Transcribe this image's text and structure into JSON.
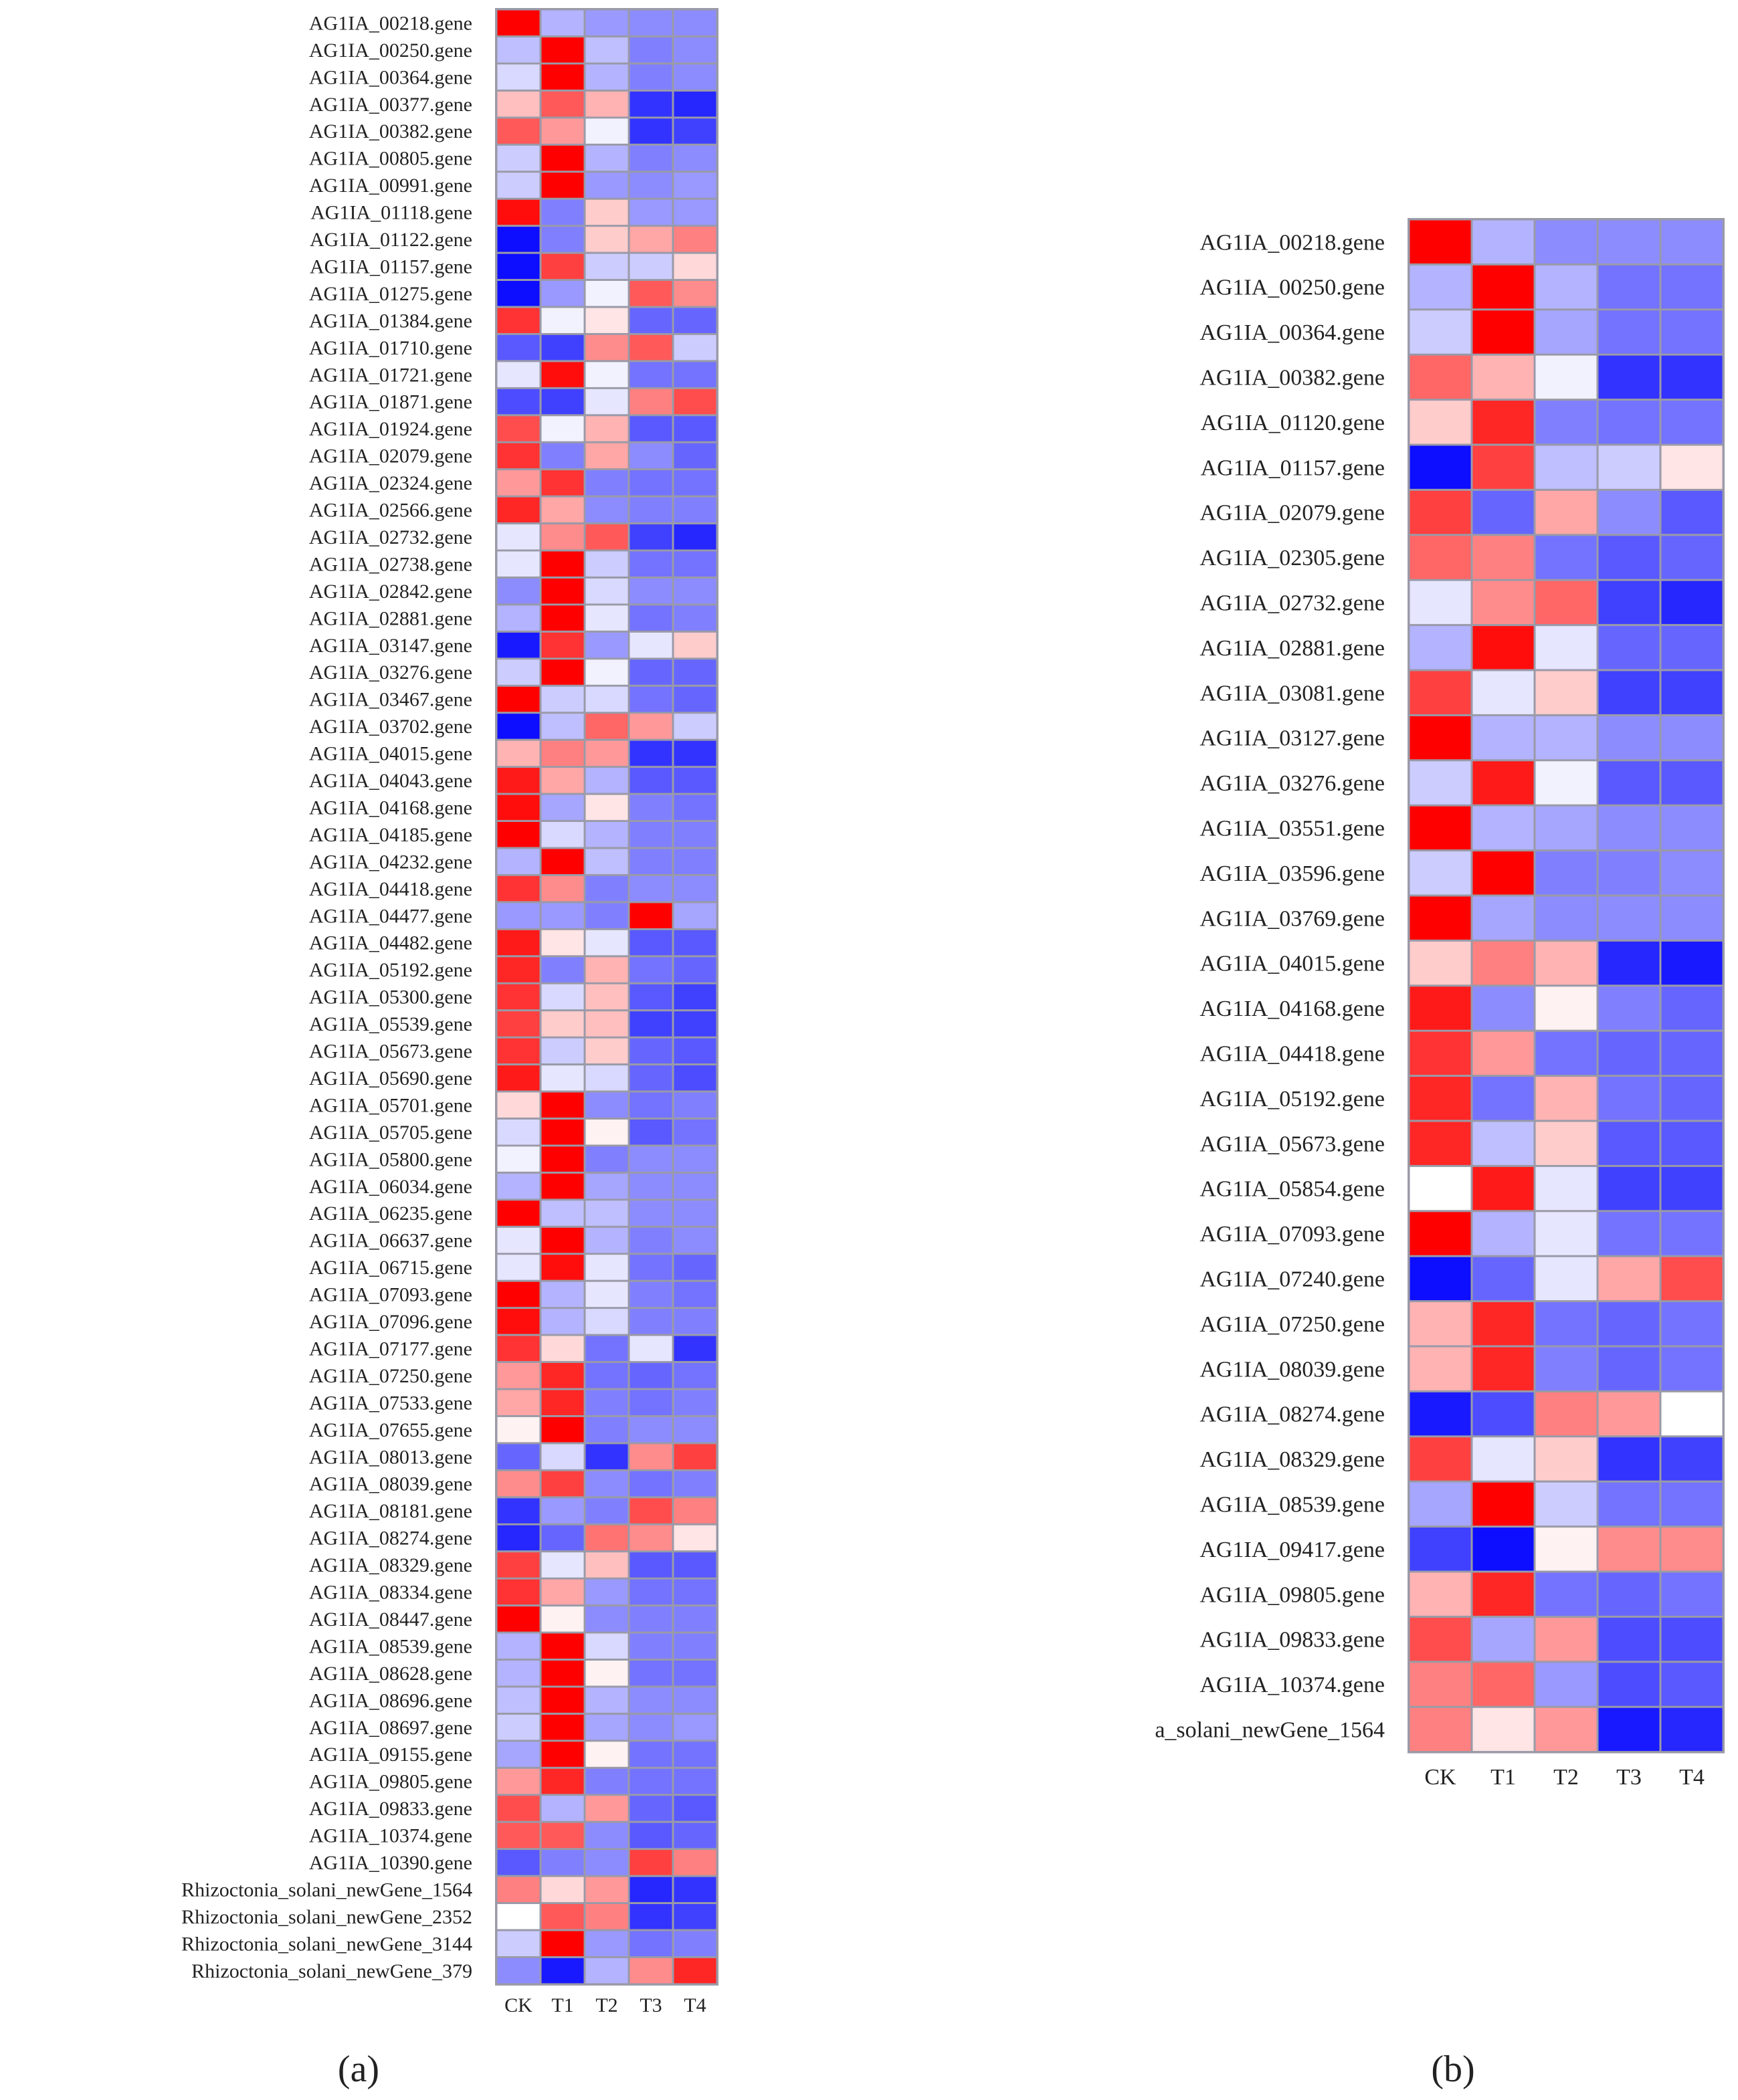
{
  "chart_data": [
    {
      "type": "heatmap",
      "panel_label": "(a)",
      "title": "",
      "columns": [
        "CK",
        "T1",
        "T2",
        "T3",
        "T4"
      ],
      "value_range": [
        -2,
        2
      ],
      "color_scale": [
        "#0000ff",
        "#ffffff",
        "#ff0000"
      ],
      "rows": [
        "AG1IA_00218.gene",
        "AG1IA_00250.gene",
        "AG1IA_00364.gene",
        "AG1IA_00377.gene",
        "AG1IA_00382.gene",
        "AG1IA_00805.gene",
        "AG1IA_00991.gene",
        "AG1IA_01118.gene",
        "AG1IA_01122.gene",
        "AG1IA_01157.gene",
        "AG1IA_01275.gene",
        "AG1IA_01384.gene",
        "AG1IA_01710.gene",
        "AG1IA_01721.gene",
        "AG1IA_01871.gene",
        "AG1IA_01924.gene",
        "AG1IA_02079.gene",
        "AG1IA_02324.gene",
        "AG1IA_02566.gene",
        "AG1IA_02732.gene",
        "AG1IA_02738.gene",
        "AG1IA_02842.gene",
        "AG1IA_02881.gene",
        "AG1IA_03147.gene",
        "AG1IA_03276.gene",
        "AG1IA_03467.gene",
        "AG1IA_03702.gene",
        "AG1IA_04015.gene",
        "AG1IA_04043.gene",
        "AG1IA_04168.gene",
        "AG1IA_04185.gene",
        "AG1IA_04232.gene",
        "AG1IA_04418.gene",
        "AG1IA_04477.gene",
        "AG1IA_04482.gene",
        "AG1IA_05192.gene",
        "AG1IA_05300.gene",
        "AG1IA_05539.gene",
        "AG1IA_05673.gene",
        "AG1IA_05690.gene",
        "AG1IA_05701.gene",
        "AG1IA_05705.gene",
        "AG1IA_05800.gene",
        "AG1IA_06034.gene",
        "AG1IA_06235.gene",
        "AG1IA_06637.gene",
        "AG1IA_06715.gene",
        "AG1IA_07093.gene",
        "AG1IA_07096.gene",
        "AG1IA_07177.gene",
        "AG1IA_07250.gene",
        "AG1IA_07533.gene",
        "AG1IA_07655.gene",
        "AG1IA_08013.gene",
        "AG1IA_08039.gene",
        "AG1IA_08181.gene",
        "AG1IA_08274.gene",
        "AG1IA_08329.gene",
        "AG1IA_08334.gene",
        "AG1IA_08447.gene",
        "AG1IA_08539.gene",
        "AG1IA_08628.gene",
        "AG1IA_08696.gene",
        "AG1IA_08697.gene",
        "AG1IA_09155.gene",
        "AG1IA_09805.gene",
        "AG1IA_09833.gene",
        "AG1IA_10374.gene",
        "AG1IA_10390.gene",
        "Rhizoctonia_solani_newGene_1564",
        "Rhizoctonia_solani_newGene_2352",
        "Rhizoctonia_solani_newGene_3144",
        "Rhizoctonia_solani_newGene_379"
      ],
      "values": [
        [
          2.0,
          -0.6,
          -0.8,
          -0.9,
          -0.9
        ],
        [
          -0.5,
          2.0,
          -0.5,
          -1.0,
          -0.9
        ],
        [
          -0.3,
          2.0,
          -0.6,
          -1.0,
          -0.9
        ],
        [
          0.5,
          1.3,
          0.6,
          -1.6,
          -1.7
        ],
        [
          1.3,
          0.8,
          -0.1,
          -1.6,
          -1.5
        ],
        [
          -0.4,
          2.0,
          -0.6,
          -1.0,
          -0.9
        ],
        [
          -0.4,
          2.0,
          -0.8,
          -0.9,
          -0.8
        ],
        [
          1.9,
          -1.0,
          0.4,
          -0.8,
          -0.8
        ],
        [
          -1.9,
          -1.0,
          0.4,
          0.7,
          1.0
        ],
        [
          -1.9,
          1.5,
          -0.4,
          -0.4,
          0.3
        ],
        [
          -1.9,
          -0.8,
          -0.1,
          1.3,
          0.9
        ],
        [
          1.6,
          -0.1,
          0.2,
          -1.2,
          -1.2
        ],
        [
          -1.3,
          -1.5,
          0.9,
          1.3,
          -0.4
        ],
        [
          -0.2,
          1.9,
          -0.1,
          -1.1,
          -1.1
        ],
        [
          -1.4,
          -1.5,
          -0.2,
          1.0,
          1.4
        ],
        [
          1.4,
          -0.1,
          0.6,
          -1.3,
          -1.3
        ],
        [
          1.6,
          -1.0,
          0.7,
          -0.9,
          -1.2
        ],
        [
          0.8,
          1.6,
          -1.0,
          -1.1,
          -1.1
        ],
        [
          1.7,
          0.7,
          -0.9,
          -1.0,
          -1.0
        ],
        [
          -0.2,
          0.9,
          1.3,
          -1.5,
          -1.7
        ],
        [
          -0.2,
          2.0,
          -0.4,
          -1.1,
          -1.1
        ],
        [
          -0.9,
          2.0,
          -0.3,
          -0.9,
          -0.9
        ],
        [
          -0.6,
          2.0,
          -0.2,
          -1.1,
          -1.0
        ],
        [
          -1.8,
          1.6,
          -0.8,
          -0.2,
          0.4
        ],
        [
          -0.4,
          2.0,
          -0.1,
          -1.2,
          -1.2
        ],
        [
          2.0,
          -0.4,
          -0.3,
          -1.1,
          -1.2
        ],
        [
          -1.9,
          -0.5,
          1.2,
          0.8,
          -0.4
        ],
        [
          0.6,
          1.0,
          0.8,
          -1.6,
          -1.6
        ],
        [
          1.8,
          0.7,
          -0.6,
          -1.3,
          -1.3
        ],
        [
          1.9,
          -0.7,
          0.2,
          -1.0,
          -1.1
        ],
        [
          2.0,
          -0.3,
          -0.6,
          -1.0,
          -1.0
        ],
        [
          -0.6,
          2.0,
          -0.5,
          -1.0,
          -1.0
        ],
        [
          1.6,
          0.9,
          -1.0,
          -0.9,
          -0.9
        ],
        [
          -0.8,
          -0.8,
          -1.0,
          2.0,
          -0.7
        ],
        [
          1.8,
          0.2,
          -0.2,
          -1.3,
          -1.3
        ],
        [
          1.7,
          -1.0,
          0.6,
          -1.1,
          -1.2
        ],
        [
          1.6,
          -0.3,
          0.5,
          -1.3,
          -1.5
        ],
        [
          1.5,
          0.4,
          0.5,
          -1.5,
          -1.5
        ],
        [
          1.6,
          -0.4,
          0.4,
          -1.2,
          -1.3
        ],
        [
          1.8,
          -0.2,
          -0.3,
          -1.2,
          -1.4
        ],
        [
          0.3,
          2.0,
          -0.9,
          -1.1,
          -1.0
        ],
        [
          -0.3,
          2.0,
          0.1,
          -1.3,
          -1.1
        ],
        [
          -0.1,
          2.0,
          -1.0,
          -0.9,
          -0.9
        ],
        [
          -0.6,
          2.0,
          -0.7,
          -0.9,
          -0.9
        ],
        [
          2.0,
          -0.5,
          -0.5,
          -0.9,
          -0.9
        ],
        [
          -0.2,
          2.0,
          -0.6,
          -1.0,
          -0.9
        ],
        [
          -0.2,
          1.9,
          -0.2,
          -1.1,
          -1.2
        ],
        [
          2.0,
          -0.6,
          -0.2,
          -1.0,
          -1.1
        ],
        [
          1.9,
          -0.6,
          -0.3,
          -1.0,
          -1.0
        ],
        [
          1.6,
          0.3,
          -1.1,
          -0.2,
          -1.6
        ],
        [
          0.8,
          1.7,
          -1.1,
          -1.2,
          -1.1
        ],
        [
          0.7,
          1.7,
          -1.0,
          -1.1,
          -1.0
        ],
        [
          0.1,
          2.0,
          -1.0,
          -0.9,
          -0.9
        ],
        [
          -1.2,
          -0.3,
          -1.6,
          0.9,
          1.5
        ],
        [
          0.9,
          1.5,
          -0.9,
          -1.1,
          -1.0
        ],
        [
          -1.6,
          -0.8,
          -1.0,
          1.4,
          1.0
        ],
        [
          -1.7,
          -1.2,
          1.1,
          0.9,
          0.2
        ],
        [
          1.5,
          -0.2,
          0.5,
          -1.3,
          -1.3
        ],
        [
          1.6,
          0.7,
          -0.8,
          -1.1,
          -1.1
        ],
        [
          2.0,
          0.1,
          -0.9,
          -1.0,
          -1.0
        ],
        [
          -0.6,
          2.0,
          -0.3,
          -1.0,
          -1.0
        ],
        [
          -0.6,
          2.0,
          0.1,
          -1.1,
          -1.1
        ],
        [
          -0.5,
          2.0,
          -0.6,
          -0.9,
          -0.9
        ],
        [
          -0.4,
          2.0,
          -0.7,
          -0.9,
          -0.8
        ],
        [
          -0.7,
          2.0,
          0.1,
          -1.1,
          -1.1
        ],
        [
          0.8,
          1.7,
          -1.0,
          -1.1,
          -1.1
        ],
        [
          1.4,
          -0.6,
          0.8,
          -1.2,
          -1.3
        ],
        [
          1.3,
          1.3,
          -0.9,
          -1.3,
          -1.2
        ],
        [
          -1.3,
          -1.0,
          -0.9,
          1.5,
          1.0
        ],
        [
          1.0,
          0.3,
          0.8,
          -1.7,
          -1.6
        ],
        [
          0.0,
          1.3,
          1.0,
          -1.6,
          -1.5
        ],
        [
          -0.4,
          2.0,
          -0.8,
          -1.1,
          -1.0
        ],
        [
          -0.9,
          -1.8,
          -0.6,
          0.9,
          1.7
        ]
      ]
    },
    {
      "type": "heatmap",
      "panel_label": "(b)",
      "title": "",
      "columns": [
        "CK",
        "T1",
        "T2",
        "T3",
        "T4"
      ],
      "value_range": [
        -2,
        2
      ],
      "color_scale": [
        "#0000ff",
        "#ffffff",
        "#ff0000"
      ],
      "rows": [
        "AG1IA_00218.gene",
        "AG1IA_00250.gene",
        "AG1IA_00364.gene",
        "AG1IA_00382.gene",
        "AG1IA_01120.gene",
        "AG1IA_01157.gene",
        "AG1IA_02079.gene",
        "AG1IA_02305.gene",
        "AG1IA_02732.gene",
        "AG1IA_02881.gene",
        "AG1IA_03081.gene",
        "AG1IA_03127.gene",
        "AG1IA_03276.gene",
        "AG1IA_03551.gene",
        "AG1IA_03596.gene",
        "AG1IA_03769.gene",
        "AG1IA_04015.gene",
        "AG1IA_04168.gene",
        "AG1IA_04418.gene",
        "AG1IA_05192.gene",
        "AG1IA_05673.gene",
        "AG1IA_05854.gene",
        "AG1IA_07093.gene",
        "AG1IA_07240.gene",
        "AG1IA_07250.gene",
        "AG1IA_08039.gene",
        "AG1IA_08274.gene",
        "AG1IA_08329.gene",
        "AG1IA_08539.gene",
        "AG1IA_09417.gene",
        "AG1IA_09805.gene",
        "AG1IA_09833.gene",
        "AG1IA_10374.gene",
        "a_solani_newGene_1564"
      ],
      "values": [
        [
          2.0,
          -0.6,
          -0.9,
          -0.9,
          -0.9
        ],
        [
          -0.6,
          2.0,
          -0.6,
          -1.1,
          -1.1
        ],
        [
          -0.4,
          2.0,
          -0.7,
          -1.1,
          -1.1
        ],
        [
          1.2,
          0.6,
          -0.1,
          -1.6,
          -1.6
        ],
        [
          0.4,
          1.7,
          -1.0,
          -1.1,
          -1.1
        ],
        [
          -1.9,
          1.5,
          -0.5,
          -0.4,
          0.2
        ],
        [
          1.5,
          -1.2,
          0.7,
          -0.9,
          -1.3
        ],
        [
          1.2,
          1.0,
          -1.1,
          -1.3,
          -1.2
        ],
        [
          -0.2,
          0.9,
          1.2,
          -1.5,
          -1.7
        ],
        [
          -0.6,
          1.9,
          -0.2,
          -1.2,
          -1.2
        ],
        [
          1.5,
          -0.2,
          0.4,
          -1.5,
          -1.5
        ],
        [
          2.0,
          -0.6,
          -0.6,
          -0.9,
          -0.9
        ],
        [
          -0.4,
          1.8,
          -0.1,
          -1.3,
          -1.3
        ],
        [
          2.0,
          -0.6,
          -0.7,
          -0.9,
          -0.9
        ],
        [
          -0.4,
          2.0,
          -1.0,
          -1.0,
          -0.9
        ],
        [
          2.0,
          -0.7,
          -0.9,
          -0.9,
          -0.9
        ],
        [
          0.4,
          1.0,
          0.6,
          -1.7,
          -1.8
        ],
        [
          1.8,
          -0.9,
          0.1,
          -1.0,
          -1.2
        ],
        [
          1.6,
          0.8,
          -1.1,
          -1.2,
          -1.2
        ],
        [
          1.7,
          -1.1,
          0.6,
          -1.1,
          -1.2
        ],
        [
          1.7,
          -0.5,
          0.4,
          -1.3,
          -1.3
        ],
        [
          0.0,
          1.8,
          -0.2,
          -1.5,
          -1.5
        ],
        [
          2.0,
          -0.6,
          -0.2,
          -1.1,
          -1.1
        ],
        [
          -1.9,
          -1.2,
          -0.2,
          0.7,
          1.4
        ],
        [
          0.6,
          1.7,
          -1.1,
          -1.2,
          -1.1
        ],
        [
          0.6,
          1.7,
          -1.0,
          -1.2,
          -1.1
        ],
        [
          -1.8,
          -1.4,
          1.0,
          0.8,
          0.0
        ],
        [
          1.5,
          -0.2,
          0.4,
          -1.6,
          -1.5
        ],
        [
          -0.7,
          2.0,
          -0.4,
          -1.1,
          -1.1
        ],
        [
          -1.5,
          -1.9,
          0.1,
          0.9,
          0.9
        ],
        [
          0.6,
          1.7,
          -1.1,
          -1.2,
          -1.1
        ],
        [
          1.4,
          -0.7,
          0.8,
          -1.4,
          -1.4
        ],
        [
          1.0,
          1.2,
          -0.8,
          -1.4,
          -1.3
        ],
        [
          1.0,
          0.2,
          0.8,
          -1.8,
          -1.7
        ]
      ]
    }
  ]
}
